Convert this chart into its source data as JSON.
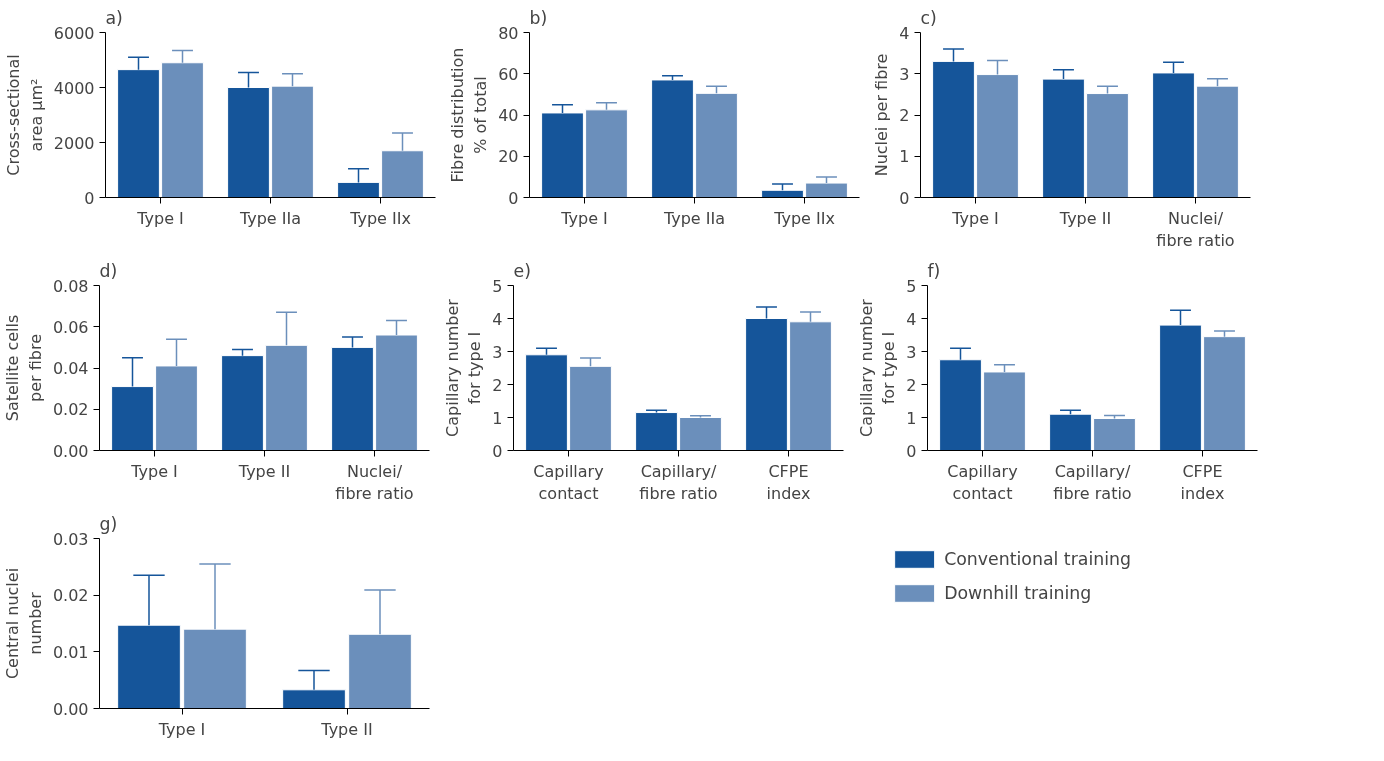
{
  "chart_data": [
    {
      "type": "bar",
      "title": "a)",
      "ylabel": "Cross-sectional\narea µm²",
      "categories": [
        "Type I",
        "Type IIa",
        "Type IIx"
      ],
      "ylim": [
        0,
        6000
      ],
      "yticks": [
        0,
        2000,
        4000,
        6000
      ],
      "series": [
        {
          "color": "#15559a",
          "values": [
            4650,
            4000,
            550
          ],
          "errors": [
            [
              4650,
              5100
            ],
            [
              4000,
              4550
            ],
            [
              550,
              1050
            ]
          ]
        },
        {
          "color": "#6b8fbb",
          "values": [
            4900,
            4050,
            1700
          ],
          "errors": [
            [
              4900,
              5350
            ],
            [
              4050,
              4500
            ],
            [
              1700,
              2350
            ]
          ]
        }
      ]
    },
    {
      "type": "bar",
      "title": "b)",
      "ylabel": "Fibre distribution\n% of total",
      "categories": [
        "Type I",
        "Type IIa",
        "Type IIx"
      ],
      "ylim": [
        0,
        80
      ],
      "yticks": [
        0,
        20,
        40,
        60,
        80
      ],
      "series": [
        {
          "color": "#15559a",
          "values": [
            41,
            57,
            3.5
          ],
          "errors": [
            [
              41,
              45
            ],
            [
              57,
              59
            ],
            [
              3.5,
              6.5
            ]
          ]
        },
        {
          "color": "#6b8fbb",
          "values": [
            42.5,
            50.5,
            7
          ],
          "errors": [
            [
              42.5,
              46
            ],
            [
              50.5,
              54
            ],
            [
              7,
              10
            ]
          ]
        }
      ]
    },
    {
      "type": "bar",
      "title": "c)",
      "ylabel": "Nuclei per fibre",
      "categories": [
        "Type I",
        "Type II",
        "Nuclei/\nfibre ratio"
      ],
      "ylim": [
        0,
        4
      ],
      "yticks": [
        0,
        1,
        2,
        3,
        4
      ],
      "series": [
        {
          "color": "#15559a",
          "values": [
            3.3,
            2.87,
            3.02
          ],
          "errors": [
            [
              3.3,
              3.6
            ],
            [
              2.87,
              3.1
            ],
            [
              3.02,
              3.28
            ]
          ]
        },
        {
          "color": "#6b8fbb",
          "values": [
            2.98,
            2.52,
            2.7
          ],
          "errors": [
            [
              2.98,
              3.32
            ],
            [
              2.52,
              2.7
            ],
            [
              2.7,
              2.88
            ]
          ]
        }
      ]
    },
    {
      "type": "bar",
      "title": "d)",
      "ylabel": "Satellite cells\nper fibre",
      "categories": [
        "Type I",
        "Type II",
        "Nuclei/\nfibre ratio"
      ],
      "ylim": [
        0,
        0.08
      ],
      "yticks": [
        {
          "value": 0,
          "label": "0.00"
        },
        {
          "value": 0.02,
          "label": "0.02"
        },
        {
          "value": 0.04,
          "label": "0.04"
        },
        {
          "value": 0.06,
          "label": "0.06"
        },
        {
          "value": 0.08,
          "label": "0.08"
        }
      ],
      "series": [
        {
          "color": "#15559a",
          "values": [
            0.031,
            0.046,
            0.05
          ],
          "errors": [
            [
              0.031,
              0.045
            ],
            [
              0.046,
              0.049
            ],
            [
              0.05,
              0.055
            ]
          ]
        },
        {
          "color": "#6b8fbb",
          "values": [
            0.041,
            0.051,
            0.056
          ],
          "errors": [
            [
              0.041,
              0.054
            ],
            [
              0.051,
              0.067
            ],
            [
              0.056,
              0.063
            ]
          ]
        }
      ]
    },
    {
      "type": "bar",
      "title": "e)",
      "ylabel": "Capillary number\nfor type I",
      "categories": [
        "Capillary\ncontact",
        "Capillary/\nfibre ratio",
        "CFPE\nindex"
      ],
      "ylim": [
        0,
        5
      ],
      "yticks": [
        0,
        1,
        2,
        3,
        4,
        5
      ],
      "series": [
        {
          "color": "#15559a",
          "values": [
            2.9,
            1.15,
            4.0
          ],
          "errors": [
            [
              2.9,
              3.1
            ],
            [
              1.15,
              1.22
            ],
            [
              4.0,
              4.35
            ]
          ]
        },
        {
          "color": "#6b8fbb",
          "values": [
            2.55,
            1.0,
            3.9
          ],
          "errors": [
            [
              2.55,
              2.8
            ],
            [
              1.0,
              1.05
            ],
            [
              3.9,
              4.2
            ]
          ]
        }
      ]
    },
    {
      "type": "bar",
      "title": "f)",
      "ylabel": "Capillary number\nfor type I",
      "categories": [
        "Capillary\ncontact",
        "Capillary/\nfibre ratio",
        "CFPE\nindex"
      ],
      "ylim": [
        0,
        5
      ],
      "yticks": [
        0,
        1,
        2,
        3,
        4,
        5
      ],
      "series": [
        {
          "color": "#15559a",
          "values": [
            2.75,
            1.1,
            3.8
          ],
          "errors": [
            [
              2.75,
              3.1
            ],
            [
              1.1,
              1.22
            ],
            [
              3.8,
              4.25
            ]
          ]
        },
        {
          "color": "#6b8fbb",
          "values": [
            2.38,
            0.97,
            3.45
          ],
          "errors": [
            [
              2.38,
              2.6
            ],
            [
              0.97,
              1.06
            ],
            [
              3.45,
              3.62
            ]
          ]
        }
      ]
    },
    {
      "type": "bar",
      "title": "g)",
      "ylabel": "Central nuclei\nnumber",
      "categories": [
        "Type I",
        "Type II"
      ],
      "ylim": [
        0,
        0.03
      ],
      "yticks": [
        {
          "value": 0,
          "label": "0.00"
        },
        {
          "value": 0.01,
          "label": "0.01"
        },
        {
          "value": 0.02,
          "label": "0.02"
        },
        {
          "value": 0.03,
          "label": "0.03"
        }
      ],
      "legend": "right",
      "series": [
        {
          "name": "Conventional training",
          "color": "#15559a",
          "values": [
            0.0147,
            0.0033
          ],
          "errors": [
            [
              0.0147,
              0.0235
            ],
            [
              0.0033,
              0.0067
            ]
          ]
        },
        {
          "name": "Downhill training",
          "color": "#6b8fbb",
          "values": [
            0.014,
            0.0131
          ],
          "errors": [
            [
              0.014,
              0.0255
            ],
            [
              0.0131,
              0.0209
            ]
          ]
        }
      ]
    }
  ]
}
